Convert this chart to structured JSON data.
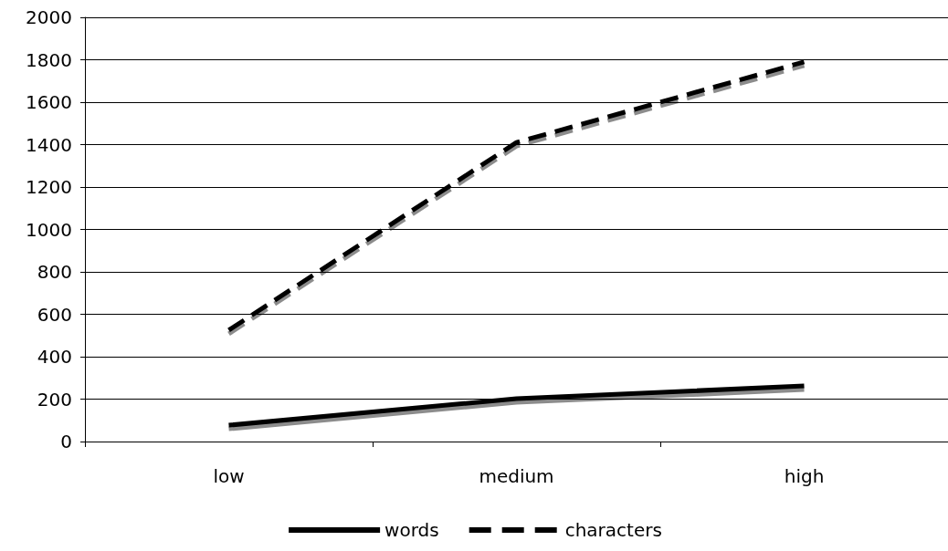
{
  "chart_data": {
    "type": "line",
    "categories": [
      "low",
      "medium",
      "high"
    ],
    "series": [
      {
        "name": "words",
        "color": "#000000",
        "values": [
          77,
          202,
          262
        ],
        "line_style": "solid"
      },
      {
        "name": "characters",
        "color": "#000000",
        "values": [
          525,
          1410,
          1790
        ],
        "line_style": "dashed"
      }
    ],
    "ylim": [
      0,
      2000
    ],
    "yticks": [
      0,
      200,
      400,
      600,
      800,
      1000,
      1200,
      1400,
      1600,
      1800,
      2000
    ],
    "grid": "y",
    "legend": "bottom",
    "marker": "none"
  }
}
